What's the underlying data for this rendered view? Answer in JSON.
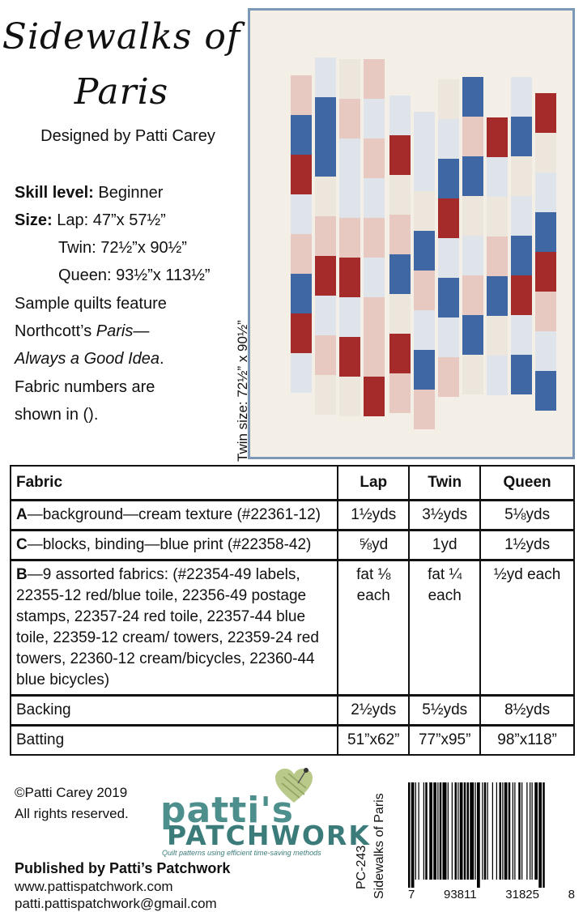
{
  "title_line1": "Sidewalks of",
  "title_line2": "Paris",
  "designer": "Designed by Patti Carey",
  "skill": {
    "label": "Skill level:",
    "value": "Beginner"
  },
  "size": {
    "label": "Size:",
    "lap": "Lap: 47”x 57½”",
    "twin": "Twin: 72½”x 90½”",
    "queen": "Queen: 93½”x 113½”"
  },
  "sample": {
    "line1": "Sample quilts feature",
    "line2_prefix": "Northcott’s ",
    "line2_italic": "Paris—",
    "line3_italic": "Always a Good Idea",
    "line3_suffix": ".",
    "line4": "Fabric numbers are",
    "line5": "shown in ()."
  },
  "twin_note": "Twin size: 72½” x 90½”",
  "table": {
    "headers": [
      "Fabric",
      "Lap",
      "Twin",
      "Queen"
    ],
    "rows": [
      {
        "fabric_letter": "A",
        "fabric_text": "—background—cream texture (#22361-12)",
        "lap": "1½yds",
        "twin": "3½yds",
        "queen": "5⅛yds"
      },
      {
        "fabric_letter": "C",
        "fabric_text": "—blocks, binding—blue print (#22358-42)",
        "lap": "⅝yd",
        "twin": "1yd",
        "queen": "1½yds"
      },
      {
        "fabric_letter": "B",
        "fabric_text": "—9 assorted fabrics: (#22354-49 labels, 22355-12 red/blue toile, 22356-49 postage stamps, 22357-24 red toile, 22357-44 blue toile, 22359-12 cream/ towers, 22359-24 red towers, 22360-12 cream/bicycles, 22360-44 blue bicycles)",
        "lap": "fat ⅛ each",
        "twin": "fat ¼ each",
        "queen": "½yd each"
      },
      {
        "fabric_letter": "",
        "fabric_text": "Backing",
        "lap": "2½yds",
        "twin": "5½yds",
        "queen": "8½yds"
      },
      {
        "fabric_letter": "",
        "fabric_text": "Batting",
        "lap": "51”x62”",
        "twin": "77”x95”",
        "queen": "98”x118”"
      }
    ]
  },
  "copyright_line1": "©Patti Carey 2019",
  "copyright_line2": "All rights reserved.",
  "logo": {
    "name": "patti's",
    "sub": "PATCHWORK",
    "tagline": "Quilt patterns using efficient time-saving methods"
  },
  "publisher": {
    "line1": "Published by Patti’s Patchwork",
    "website": "www.pattispatchwork.com",
    "email": "patti.pattispatchwork@gmail.com"
  },
  "pattern_code": "PC-243",
  "pattern_name": "Sidewalks of Paris",
  "barcode_digits": [
    "7",
    "93811",
    "31825",
    "8"
  ],
  "colors": {
    "red": "#a52a2a",
    "blue": "#3e67a4",
    "cream": "#f3efe6",
    "teal": "#4d8f8c"
  }
}
